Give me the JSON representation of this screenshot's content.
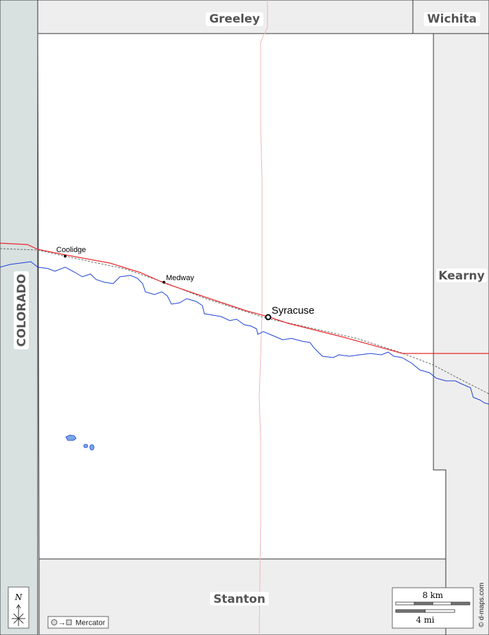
{
  "regions": {
    "north": "Greeley",
    "northeast": "Wichita",
    "east": "Kearny",
    "south": "Stanton",
    "west": "COLORADO"
  },
  "cities": [
    {
      "name": "Coolidge"
    },
    {
      "name": "Medway"
    },
    {
      "name": "Syracuse",
      "is_seat": true
    }
  ],
  "compass": {
    "label": "N"
  },
  "projection": {
    "label": "Mercator"
  },
  "scale": {
    "km_label": "8 km",
    "mi_label": "4 mi"
  },
  "credit": "© d-maps.com",
  "colors": {
    "county_fill": "#ffffff",
    "neighbor_fill": "#eeeeee",
    "state_fill": "#d8e0e0",
    "river": "#1a3fd6",
    "highway": "#e8262a",
    "minor_road": "#f2b6b6",
    "railroad": "#666666",
    "lake": "#7aa7e8"
  }
}
